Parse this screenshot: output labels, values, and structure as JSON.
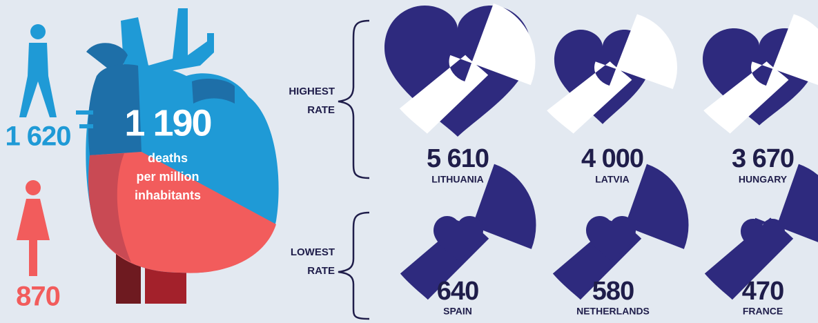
{
  "gender": {
    "male": "1 620",
    "female": "870"
  },
  "heart": {
    "value": "1 190",
    "caption": [
      "deaths",
      "per million",
      "inhabitants"
    ]
  },
  "groups": [
    {
      "label": [
        "HIGHEST",
        "RATE"
      ],
      "items": [
        {
          "value": "5 610",
          "country": "LITHUANIA"
        },
        {
          "value": "4 000",
          "country": "LATVIA"
        },
        {
          "value": "3 670",
          "country": "HUNGARY"
        }
      ]
    },
    {
      "label": [
        "LOWEST",
        "RATE"
      ],
      "items": [
        {
          "value": "640",
          "country": "SPAIN"
        },
        {
          "value": "580",
          "country": "NETHERLANDS"
        },
        {
          "value": "470",
          "country": "FRANCE"
        }
      ]
    }
  ]
}
